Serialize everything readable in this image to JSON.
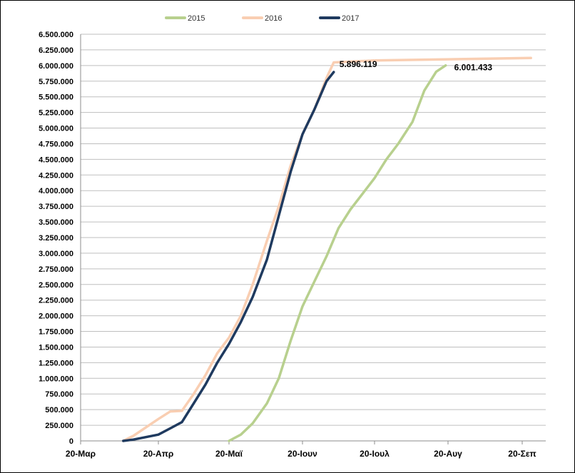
{
  "chart_data": {
    "type": "line",
    "title": "",
    "xlabel": "",
    "ylabel": "",
    "grid": true,
    "legend_position": "top-center",
    "ylim": [
      0,
      6500000
    ],
    "y_ticks": [
      {
        "value": 0,
        "label": "0"
      },
      {
        "value": 250000,
        "label": "250.000"
      },
      {
        "value": 500000,
        "label": "500.000"
      },
      {
        "value": 750000,
        "label": "750.000"
      },
      {
        "value": 1000000,
        "label": "1.000.000"
      },
      {
        "value": 1250000,
        "label": "1.250.000"
      },
      {
        "value": 1500000,
        "label": "1.500.000"
      },
      {
        "value": 1750000,
        "label": "1.750.000"
      },
      {
        "value": 2000000,
        "label": "2.000.000"
      },
      {
        "value": 2250000,
        "label": "2.250.000"
      },
      {
        "value": 2500000,
        "label": "2.500.000"
      },
      {
        "value": 2750000,
        "label": "2.750.000"
      },
      {
        "value": 3000000,
        "label": "3.000.000"
      },
      {
        "value": 3250000,
        "label": "3.250.000"
      },
      {
        "value": 3500000,
        "label": "3.500.000"
      },
      {
        "value": 3750000,
        "label": "3.750.000"
      },
      {
        "value": 4000000,
        "label": "4.000.000"
      },
      {
        "value": 4250000,
        "label": "4.250.000"
      },
      {
        "value": 4500000,
        "label": "4.500.000"
      },
      {
        "value": 4750000,
        "label": "4.750.000"
      },
      {
        "value": 5000000,
        "label": "5.000.000"
      },
      {
        "value": 5250000,
        "label": "5.250.000"
      },
      {
        "value": 5500000,
        "label": "5.500.000"
      },
      {
        "value": 5750000,
        "label": "5.750.000"
      },
      {
        "value": 6000000,
        "label": "6.000.000"
      },
      {
        "value": 6250000,
        "label": "6.250.000"
      },
      {
        "value": 6500000,
        "label": "6.500.000"
      }
    ],
    "x_ticks": [
      "20-Μαρ",
      "20-Απρ",
      "20-Μαϊ",
      "20-Ιουν",
      "20-Ιουλ",
      "20-Αυγ",
      "20-Σεπ"
    ],
    "series": [
      {
        "name": "2015",
        "color": "#b8d08e",
        "points": [
          [
            "20-Μαϊ",
            0
          ],
          [
            "25-Μαϊ",
            100000
          ],
          [
            "30-Μαϊ",
            280000
          ],
          [
            "5-Ιουν",
            600000
          ],
          [
            "10-Ιουν",
            1000000
          ],
          [
            "15-Ιουν",
            1600000
          ],
          [
            "20-Ιουν",
            2150000
          ],
          [
            "25-Ιουν",
            2550000
          ],
          [
            "30-Ιουν",
            2950000
          ],
          [
            "5-Ιουλ",
            3400000
          ],
          [
            "10-Ιουλ",
            3700000
          ],
          [
            "15-Ιουλ",
            3950000
          ],
          [
            "20-Ιουλ",
            4200000
          ],
          [
            "25-Ιουλ",
            4500000
          ],
          [
            "30-Ιουλ",
            4750000
          ],
          [
            "5-Αυγ",
            5100000
          ],
          [
            "10-Αυγ",
            5600000
          ],
          [
            "15-Αυγ",
            5900000
          ],
          [
            "19-Αυγ",
            6001433
          ]
        ]
      },
      {
        "name": "2016",
        "color": "#f9ceb2",
        "points": [
          [
            "6-Απρ",
            0
          ],
          [
            "10-Απρ",
            80000
          ],
          [
            "20-Απρ",
            350000
          ],
          [
            "25-Απρ",
            470000
          ],
          [
            "30-Απρ",
            480000
          ],
          [
            "5-Μαϊ",
            750000
          ],
          [
            "10-Μαϊ",
            1050000
          ],
          [
            "15-Μαϊ",
            1400000
          ],
          [
            "20-Μαϊ",
            1650000
          ],
          [
            "25-Μαϊ",
            2000000
          ],
          [
            "30-Μαϊ",
            2500000
          ],
          [
            "5-Ιουν",
            3200000
          ],
          [
            "10-Ιουν",
            3750000
          ],
          [
            "15-Ιουν",
            4400000
          ],
          [
            "20-Ιουν",
            4900000
          ],
          [
            "25-Ιουν",
            5300000
          ],
          [
            "30-Ιουν",
            5800000
          ],
          [
            "3-Ιουλ",
            6050000
          ],
          [
            "20-Ιουλ",
            6080000
          ],
          [
            "20-Αυγ",
            6100000
          ],
          [
            "25-Σεπ",
            6120000
          ]
        ]
      },
      {
        "name": "2017",
        "color": "#1f3a5f",
        "points": [
          [
            "6-Απρ",
            0
          ],
          [
            "10-Απρ",
            20000
          ],
          [
            "20-Απρ",
            100000
          ],
          [
            "25-Απρ",
            200000
          ],
          [
            "30-Απρ",
            300000
          ],
          [
            "5-Μαϊ",
            600000
          ],
          [
            "10-Μαϊ",
            900000
          ],
          [
            "15-Μαϊ",
            1250000
          ],
          [
            "20-Μαϊ",
            1550000
          ],
          [
            "25-Μαϊ",
            1900000
          ],
          [
            "30-Μαϊ",
            2300000
          ],
          [
            "5-Ιουν",
            2900000
          ],
          [
            "10-Ιουν",
            3600000
          ],
          [
            "15-Ιουν",
            4300000
          ],
          [
            "20-Ιουν",
            4900000
          ],
          [
            "25-Ιουν",
            5300000
          ],
          [
            "30-Ιουν",
            5750000
          ],
          [
            "3-Ιουλ",
            5896119
          ]
        ]
      }
    ],
    "annotations": [
      {
        "series": "2017",
        "text": "5.896.119"
      },
      {
        "series": "2015",
        "text": "6.001.433"
      }
    ]
  }
}
